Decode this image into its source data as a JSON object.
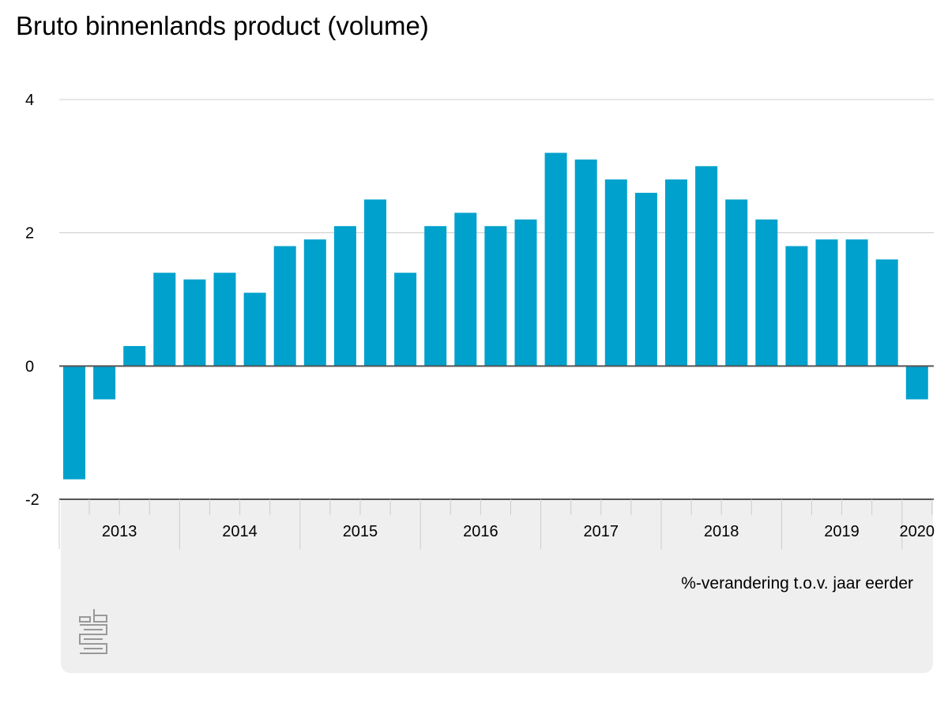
{
  "title": "Bruto binnenlands product (volume)",
  "unit_label": "%-verandering t.o.v. jaar eerder",
  "colors": {
    "bar": "#00a1cd",
    "grid": "#cccccc",
    "axis": "#555555",
    "panel": "#efefef",
    "logo": "#999999"
  },
  "logo_icon": "cbs-logo-icon",
  "chart_data": {
    "type": "bar",
    "title": "Bruto binnenlands product (volume)",
    "ylabel": "%-verandering t.o.v. jaar eerder",
    "ylim": [
      -2,
      4
    ],
    "yticks": [
      4,
      2,
      0,
      -2
    ],
    "grid": true,
    "categories": [
      "2013 Q1",
      "2013 Q2",
      "2013 Q3",
      "2013 Q4",
      "2014 Q1",
      "2014 Q2",
      "2014 Q3",
      "2014 Q4",
      "2015 Q1",
      "2015 Q2",
      "2015 Q3",
      "2015 Q4",
      "2016 Q1",
      "2016 Q2",
      "2016 Q3",
      "2016 Q4",
      "2017 Q1",
      "2017 Q2",
      "2017 Q3",
      "2017 Q4",
      "2018 Q1",
      "2018 Q2",
      "2018 Q3",
      "2018 Q4",
      "2019 Q1",
      "2019 Q2",
      "2019 Q3",
      "2019 Q4",
      "2020 Q1"
    ],
    "values": [
      -1.7,
      -0.5,
      0.3,
      1.4,
      1.3,
      1.4,
      1.1,
      1.8,
      1.9,
      2.1,
      2.5,
      1.4,
      2.1,
      2.3,
      2.1,
      2.2,
      3.2,
      3.1,
      2.8,
      2.6,
      2.8,
      3.0,
      2.5,
      2.2,
      1.8,
      1.9,
      1.9,
      1.6,
      -0.5
    ],
    "year_labels": [
      "2013",
      "2014",
      "2015",
      "2016",
      "2017",
      "2018",
      "2019",
      "2020"
    ]
  }
}
